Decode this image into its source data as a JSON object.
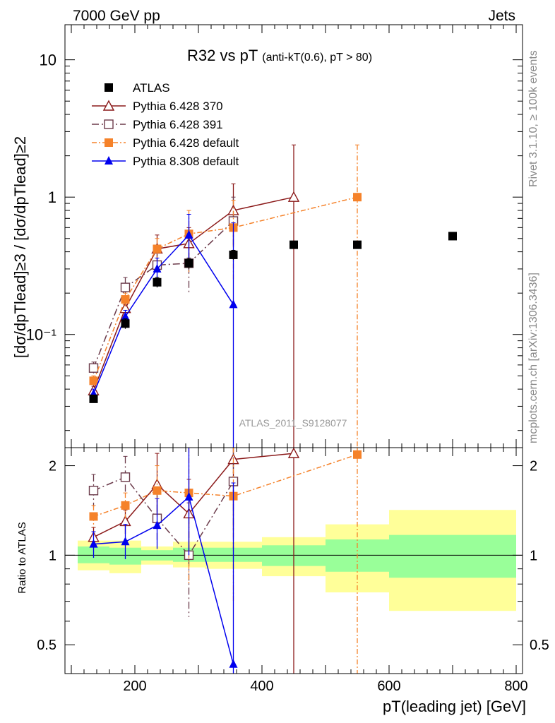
{
  "header": {
    "left": "7000 GeV pp",
    "right": "Jets"
  },
  "side_labels": {
    "upper": "Rivet 3.1.10, ≥ 100k events",
    "lower": "mcplots.cern.ch [arXiv:1306.3436]"
  },
  "watermark": "ATLAS_2011_S9128077",
  "chart_data": {
    "type": "scatter",
    "title": "R32 vs pT",
    "title_sub": "(anti-kT(0.6), pT > 80)",
    "ylabel": "[dσ/dpTlead]≥3 / [dσ/dpTlead]≥2",
    "ratio_ylabel": "Ratio to ATLAS",
    "xlabel": "pT(leading jet) [GeV]",
    "xlim": [
      90,
      810
    ],
    "ylim": [
      0.015,
      18
    ],
    "yscale": "log",
    "ratio_ylim": [
      0.4,
      2.3
    ],
    "ratio_yscale": "log",
    "x_ticks": [
      200,
      400,
      600,
      800
    ],
    "y_ticks": [
      {
        "v": 10,
        "label": "10"
      },
      {
        "v": 1,
        "label": "1"
      },
      {
        "v": 0.1,
        "label": "10⁻¹"
      }
    ],
    "ratio_ticks": [
      {
        "v": 2,
        "label": "2"
      },
      {
        "v": 1,
        "label": "1"
      },
      {
        "v": 0.5,
        "label": "0.5"
      }
    ],
    "bands": [
      {
        "x0": 110,
        "x1": 160,
        "green": [
          0.94,
          1.07
        ],
        "yellow": [
          0.89,
          1.12
        ]
      },
      {
        "x0": 160,
        "x1": 210,
        "green": [
          0.93,
          1.06
        ],
        "yellow": [
          0.87,
          1.12
        ]
      },
      {
        "x0": 210,
        "x1": 260,
        "green": [
          0.96,
          1.04
        ],
        "yellow": [
          0.93,
          1.07
        ]
      },
      {
        "x0": 260,
        "x1": 310,
        "green": [
          0.95,
          1.06
        ],
        "yellow": [
          0.91,
          1.11
        ]
      },
      {
        "x0": 310,
        "x1": 400,
        "green": [
          0.95,
          1.06
        ],
        "yellow": [
          0.9,
          1.11
        ]
      },
      {
        "x0": 400,
        "x1": 500,
        "green": [
          0.92,
          1.08
        ],
        "yellow": [
          0.85,
          1.15
        ]
      },
      {
        "x0": 500,
        "x1": 600,
        "green": [
          0.88,
          1.13
        ],
        "yellow": [
          0.75,
          1.27
        ]
      },
      {
        "x0": 600,
        "x1": 800,
        "green": [
          0.84,
          1.17
        ],
        "yellow": [
          0.65,
          1.42
        ]
      }
    ],
    "series": [
      {
        "name": "ATLAS",
        "color": "#000000",
        "marker": "square-filled",
        "dash": "none",
        "line": false,
        "points": [
          {
            "x": 135,
            "y": 0.034,
            "lo": 0.032,
            "hi": 0.036
          },
          {
            "x": 185,
            "y": 0.12,
            "lo": 0.11,
            "hi": 0.13
          },
          {
            "x": 235,
            "y": 0.24,
            "lo": 0.22,
            "hi": 0.26
          },
          {
            "x": 285,
            "y": 0.33,
            "lo": 0.3,
            "hi": 0.36
          },
          {
            "x": 355,
            "y": 0.38,
            "lo": 0.35,
            "hi": 0.41
          },
          {
            "x": 450,
            "y": 0.45,
            "lo": 0.44,
            "hi": 0.46
          },
          {
            "x": 550,
            "y": 0.45,
            "lo": 0.44,
            "hi": 0.46
          },
          {
            "x": 700,
            "y": 0.52,
            "lo": 0.51,
            "hi": 0.53
          }
        ],
        "ratio": []
      },
      {
        "name": "Pythia 6.428 370",
        "color": "#8b1a1a",
        "marker": "triangle-open",
        "dash": "none",
        "line": true,
        "points": [
          {
            "x": 135,
            "y": 0.039,
            "lo": 0.036,
            "hi": 0.042
          },
          {
            "x": 185,
            "y": 0.155,
            "lo": 0.14,
            "hi": 0.17
          },
          {
            "x": 235,
            "y": 0.42,
            "lo": 0.32,
            "hi": 0.53
          },
          {
            "x": 285,
            "y": 0.46,
            "lo": 0.33,
            "hi": 0.6
          },
          {
            "x": 355,
            "y": 0.8,
            "lo": 0.45,
            "hi": 1.25
          },
          {
            "x": 450,
            "y": 1.0,
            "lo": 0.008,
            "hi": 2.4
          }
        ],
        "ratio": [
          {
            "x": 135,
            "y": 1.15,
            "lo": 1.06,
            "hi": 1.24
          },
          {
            "x": 185,
            "y": 1.3,
            "lo": 1.18,
            "hi": 1.42
          },
          {
            "x": 235,
            "y": 1.73,
            "lo": 1.35,
            "hi": 2.2
          },
          {
            "x": 285,
            "y": 1.38,
            "lo": 1.0,
            "hi": 1.8
          },
          {
            "x": 355,
            "y": 2.1,
            "lo": 1.2,
            "hi": 2.4
          },
          {
            "x": 450,
            "y": 2.2,
            "lo": 0.3,
            "hi": 2.4
          }
        ]
      },
      {
        "name": "Pythia 6.428 391",
        "color": "#6b3a4a",
        "marker": "square-open",
        "dash": "10,4,2,4",
        "line": true,
        "points": [
          {
            "x": 135,
            "y": 0.057,
            "lo": 0.052,
            "hi": 0.063
          },
          {
            "x": 185,
            "y": 0.22,
            "lo": 0.2,
            "hi": 0.26
          },
          {
            "x": 235,
            "y": 0.32,
            "lo": 0.26,
            "hi": 0.4
          },
          {
            "x": 285,
            "y": 0.33,
            "lo": 0.2,
            "hi": 0.5
          },
          {
            "x": 355,
            "y": 0.67,
            "lo": 0.4,
            "hi": 1.0
          }
        ],
        "ratio": [
          {
            "x": 135,
            "y": 1.65,
            "lo": 1.45,
            "hi": 1.87
          },
          {
            "x": 185,
            "y": 1.83,
            "lo": 1.6,
            "hi": 2.15
          },
          {
            "x": 235,
            "y": 1.33,
            "lo": 1.1,
            "hi": 1.65
          },
          {
            "x": 285,
            "y": 1.0,
            "lo": 0.62,
            "hi": 1.5
          },
          {
            "x": 355,
            "y": 1.77,
            "lo": 1.05,
            "hi": 2.3
          }
        ]
      },
      {
        "name": "Pythia 6.428 default",
        "color": "#f5822a",
        "marker": "square-filled",
        "dash": "7,3,2,3",
        "line": true,
        "points": [
          {
            "x": 135,
            "y": 0.046,
            "lo": 0.042,
            "hi": 0.05
          },
          {
            "x": 185,
            "y": 0.18,
            "lo": 0.16,
            "hi": 0.2
          },
          {
            "x": 235,
            "y": 0.42,
            "lo": 0.34,
            "hi": 0.5
          },
          {
            "x": 285,
            "y": 0.54,
            "lo": 0.28,
            "hi": 0.8
          },
          {
            "x": 355,
            "y": 0.6,
            "lo": 0.25,
            "hi": 0.95
          },
          {
            "x": 550,
            "y": 1.0,
            "lo": 0.008,
            "hi": 2.4
          }
        ],
        "ratio": [
          {
            "x": 135,
            "y": 1.35,
            "lo": 1.24,
            "hi": 1.47
          },
          {
            "x": 185,
            "y": 1.47,
            "lo": 1.33,
            "hi": 1.62
          },
          {
            "x": 235,
            "y": 1.65,
            "lo": 1.35,
            "hi": 2.0
          },
          {
            "x": 285,
            "y": 1.62,
            "lo": 0.8,
            "hi": 2.3
          },
          {
            "x": 355,
            "y": 1.58,
            "lo": 0.7,
            "hi": 2.3
          },
          {
            "x": 550,
            "y": 2.18,
            "lo": 0.3,
            "hi": 2.4
          }
        ]
      },
      {
        "name": "Pythia 8.308 default",
        "color": "#0000ee",
        "marker": "triangle-filled",
        "dash": "none",
        "line": true,
        "points": [
          {
            "x": 135,
            "y": 0.037,
            "lo": 0.034,
            "hi": 0.04
          },
          {
            "x": 185,
            "y": 0.135,
            "lo": 0.12,
            "hi": 0.15
          },
          {
            "x": 235,
            "y": 0.3,
            "lo": 0.25,
            "hi": 0.36
          },
          {
            "x": 285,
            "y": 0.53,
            "lo": 0.33,
            "hi": 0.75
          },
          {
            "x": 355,
            "y": 0.165,
            "lo": 0.008,
            "hi": 0.65
          }
        ],
        "ratio": [
          {
            "x": 135,
            "y": 1.09,
            "lo": 0.98,
            "hi": 1.2
          },
          {
            "x": 185,
            "y": 1.11,
            "lo": 0.97,
            "hi": 1.27
          },
          {
            "x": 235,
            "y": 1.26,
            "lo": 1.05,
            "hi": 1.55
          },
          {
            "x": 285,
            "y": 1.57,
            "lo": 1.0,
            "hi": 2.3
          },
          {
            "x": 355,
            "y": 0.43,
            "lo": 0.3,
            "hi": 1.75
          }
        ]
      }
    ]
  }
}
